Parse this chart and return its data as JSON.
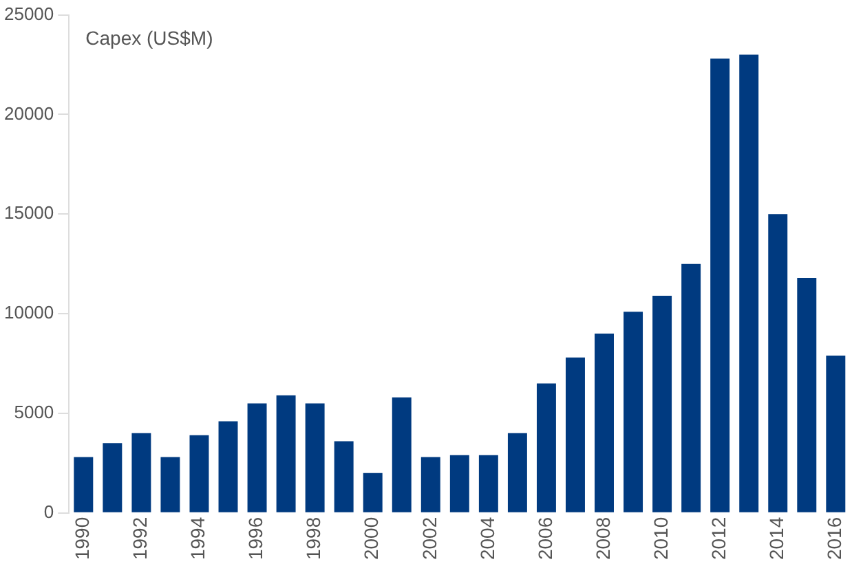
{
  "chart_data": {
    "type": "bar",
    "ylabel": "Capex (US$M)",
    "categories": [
      "1990",
      null,
      "1992",
      null,
      "1994",
      null,
      "1996",
      null,
      "1998",
      null,
      "2000",
      null,
      "2002",
      null,
      "2004",
      null,
      "2006",
      null,
      "2008",
      null,
      "2010",
      null,
      "2012",
      null,
      "2014",
      null,
      "2016"
    ],
    "values": [
      2800,
      3500,
      4000,
      2800,
      3900,
      4600,
      5500,
      5900,
      5500,
      3600,
      2000,
      5800,
      2800,
      2900,
      2900,
      4000,
      6500,
      7800,
      9000,
      10100,
      10900,
      12500,
      22800,
      23000,
      15000,
      11800,
      7900
    ],
    "color": "#003a80",
    "ylim": [
      0,
      25000
    ],
    "yticks": [
      0,
      5000,
      10000,
      15000,
      20000,
      25000
    ],
    "grid": false,
    "legend": false
  }
}
